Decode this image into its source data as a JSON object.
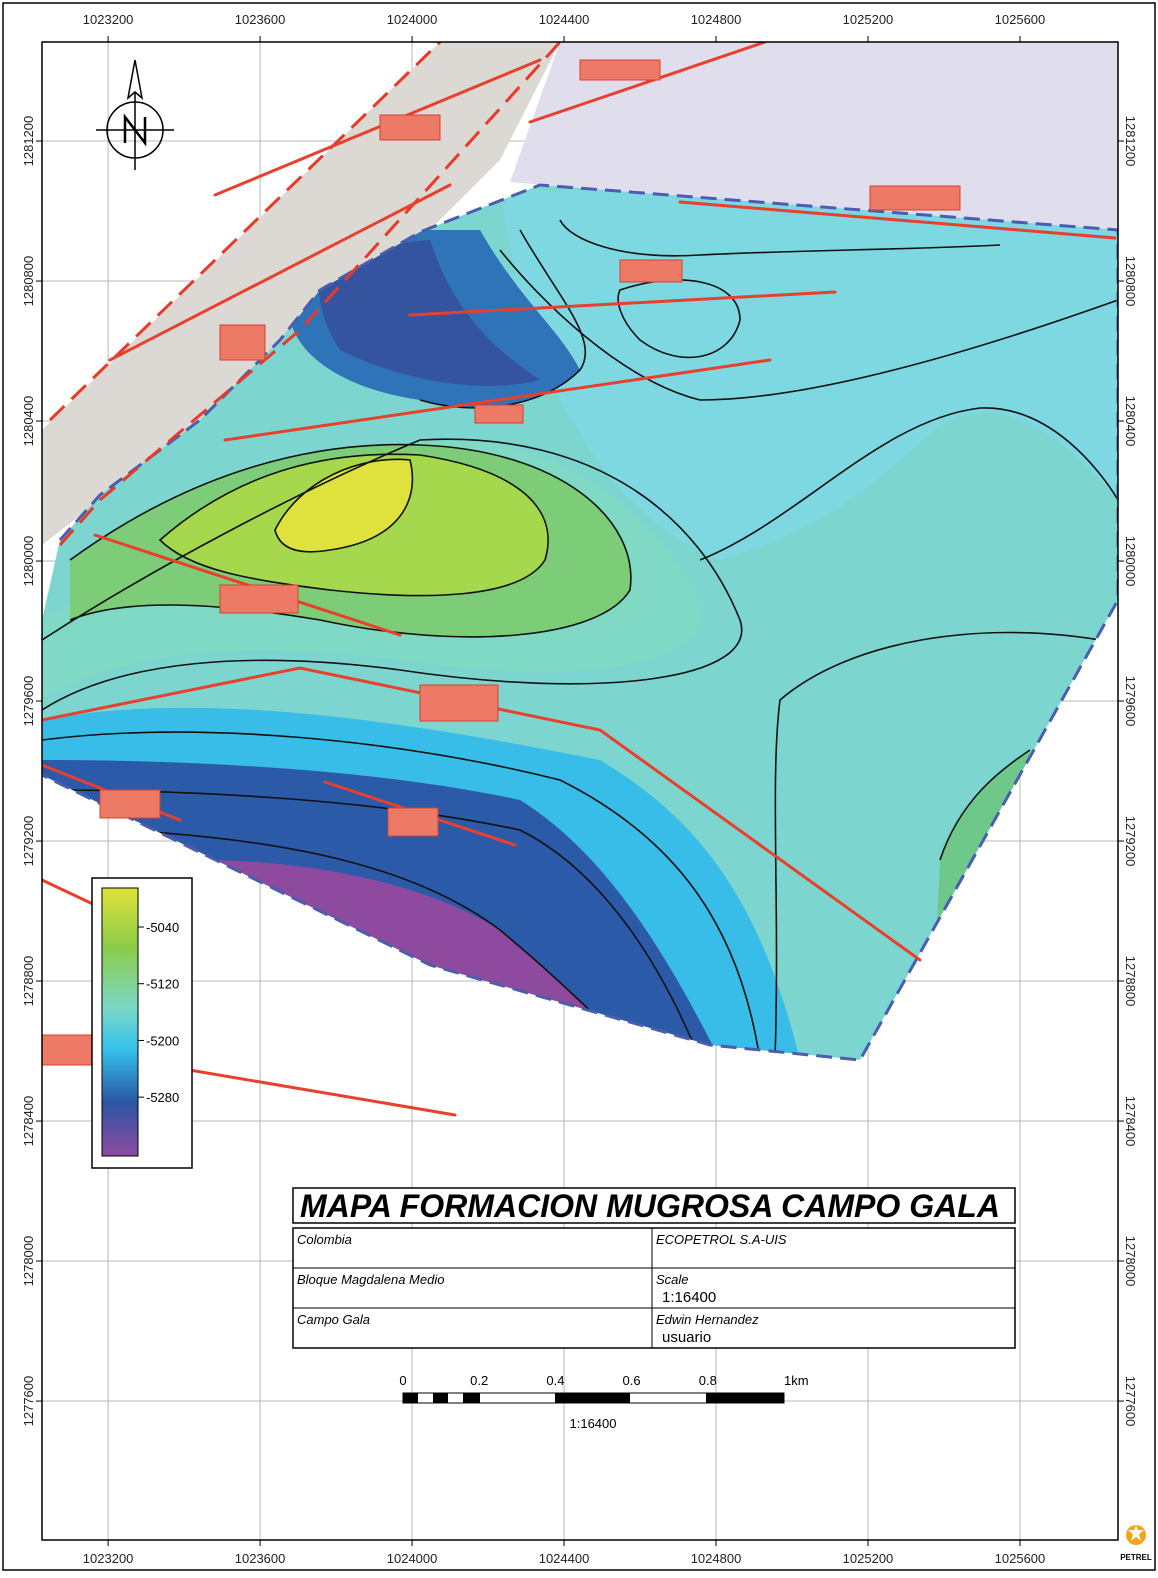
{
  "map": {
    "type": "contour-map",
    "title": "MAPA FORMACION MUGROSA CAMPO GALA",
    "xlim": [
      1023026,
      1025858
    ],
    "ylim": [
      1277203,
      1281483
    ],
    "xticks": [
      1023200,
      1023600,
      1024000,
      1024400,
      1024800,
      1025200,
      1025600
    ],
    "yticks": [
      1277600,
      1278000,
      1278400,
      1278800,
      1279200,
      1279600,
      1280000,
      1280400,
      1280800,
      1281200
    ],
    "grid": true,
    "colorbar": {
      "range": [
        -5363,
        -4985
      ],
      "ticks": [
        -5040,
        -5120,
        -5200,
        -5280
      ]
    },
    "info_table": [
      [
        "Colombia",
        "ECOPETROL S.A-UIS"
      ],
      [
        "Bloque Magdalena Medio",
        "Scale",
        "1:16400"
      ],
      [
        "Campo Gala",
        "Edwin Hernandez",
        "usuario"
      ]
    ],
    "scale_bar": {
      "labels": [
        "0",
        "0.2",
        "0.4",
        "0.6",
        "0.8",
        "1km"
      ],
      "ratio": "1:16400"
    },
    "logo": "PETREL"
  }
}
